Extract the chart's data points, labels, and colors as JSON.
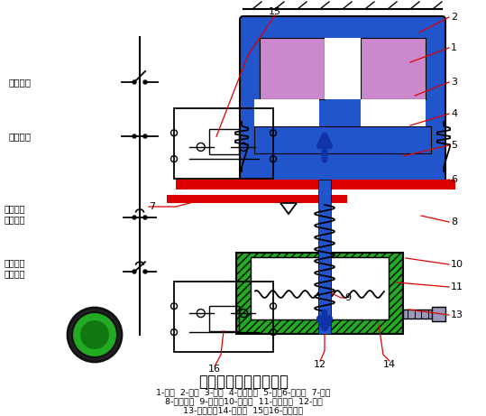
{
  "title": "通电延时型时间继电器",
  "legend_line1": "1-线圈  2-铁心  3-衔铁  4-反力弹簧  5-推板6-活塞杆  7-杠杆",
  "legend_line2": "8-塔形弹簧  9-弱弹簧10-橡皮膜  11-空气室壁  12-活塞",
  "legend_line3": "13-调节螺杆14-进气孔  15、16-微动开关",
  "bg_color": "#ffffff",
  "red_color": "#dd0000",
  "blue_color": "#2255cc",
  "blue_dark": "#1133aa",
  "green_color": "#22aa22",
  "green_dark": "#117711",
  "coil_color": "#cc88cc",
  "gray_color": "#9999bb",
  "black": "#000000"
}
